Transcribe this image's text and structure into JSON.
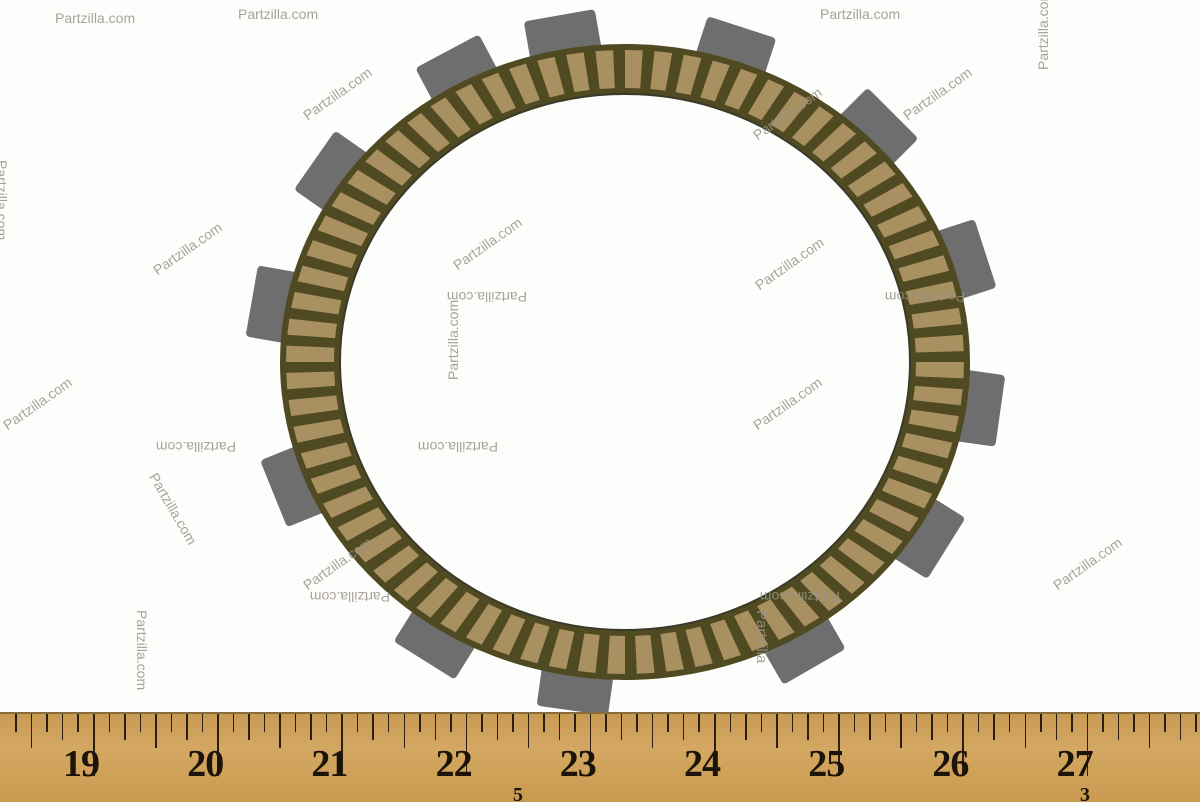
{
  "photo": {
    "subject": "clutch friction plate",
    "colors": {
      "background": "#fdfdfb",
      "friction_pad": "#a89060",
      "groove": "#4f4a22",
      "tab": "#6e6e6e",
      "ruler": "#d0a45c"
    }
  },
  "watermark": "Partzilla.com",
  "watermark_partial": "Partzilla",
  "ruler": {
    "numbers": [
      "19",
      "20",
      "21",
      "22",
      "23",
      "24",
      "25",
      "26",
      "27"
    ],
    "small_marks": [
      "5",
      "3"
    ]
  }
}
